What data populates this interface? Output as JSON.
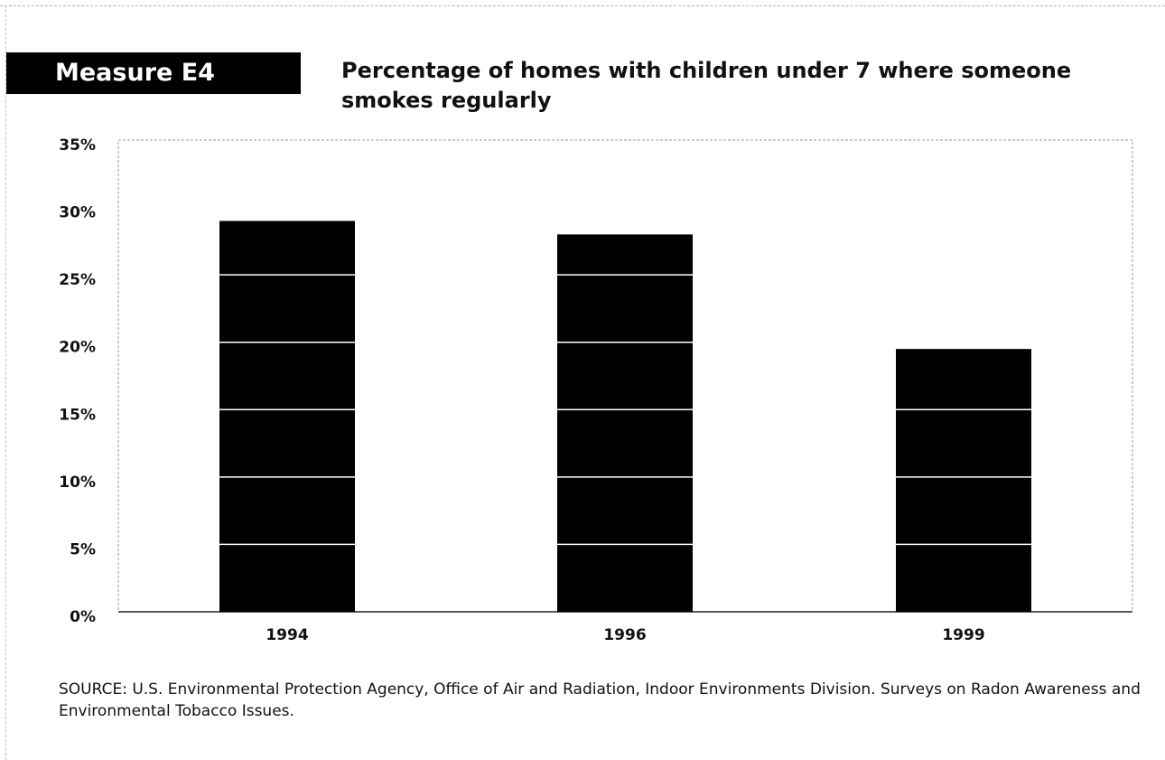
{
  "measure_label": "Measure E4",
  "chart_data": {
    "type": "bar",
    "title": "Percentage of homes with children under 7 where someone smokes regularly",
    "categories": [
      "1994",
      "1996",
      "1999"
    ],
    "values": [
      29,
      28,
      19.5
    ],
    "ylim": [
      0,
      35
    ],
    "yticks": [
      0,
      5,
      10,
      15,
      20,
      25,
      30,
      35
    ],
    "ytick_labels": [
      "0%",
      "5%",
      "10%",
      "15%",
      "20%",
      "25%",
      "30%",
      "35%"
    ],
    "xlabel": "",
    "ylabel": "",
    "grid": "white lines across bars at each 5% interval",
    "bar_color": "#000000",
    "grid_color": "#ffffff"
  },
  "source_note": "SOURCE: U.S. Environmental Protection Agency, Office of Air and Radiation, Indoor Environments Division. Surveys on Radon Awareness and Environmental Tobacco Issues."
}
